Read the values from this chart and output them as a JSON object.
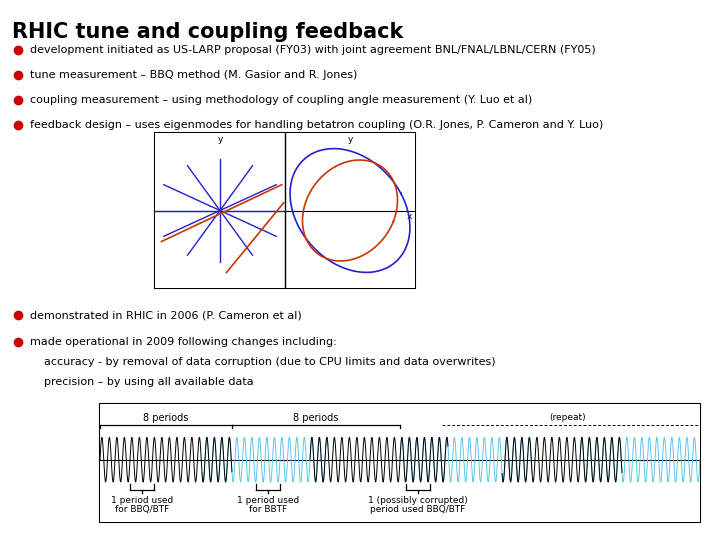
{
  "title": "RHIC tune and coupling feedback",
  "bullets": [
    "development initiated as US-LARP proposal (FY03) with joint agreement BNL/FNAL/LBNL/CERN (FY05)",
    "tune measurement – BBQ method (M. Gasior and R. Jones)",
    "coupling measurement – using methodology of coupling angle measurement (Y. Luo et al)",
    "feedback design – uses eigenmodes for handling betatron coupling (O.R. Jones, P. Cameron and Y. Luo)",
    "demonstrated in RHIC in 2006 (P. Cameron et al)",
    "made operational in 2009 following changes including:",
    "    accuracy - by removal of data corruption (due to CPU limits and data overwrites)",
    "    precision – by using all available data"
  ],
  "bullet_flags": [
    true,
    true,
    true,
    true,
    true,
    true,
    false,
    false
  ],
  "bullet_color": "#cc0000",
  "title_color": "#000000",
  "text_color": "#000000",
  "bg_color": "#ffffff",
  "cyan_color": "#5bc8e8"
}
